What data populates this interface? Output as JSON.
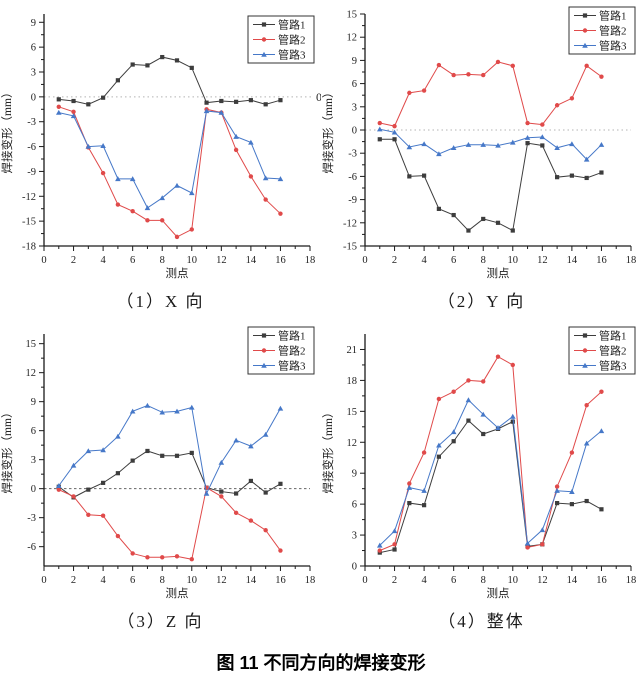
{
  "figure": {
    "caption": "图 11 不同方向的焊接变形"
  },
  "colors": {
    "series1": "#3d3d3d",
    "series2": "#e04a4a",
    "series3": "#4678c8",
    "zero_line_light": "#b3b3b3",
    "zero_line_dark": "#666666",
    "axis": "#1a1a1a",
    "tick_text": "#222222"
  },
  "chart_data": [
    {
      "type": "line",
      "panel_label": "（1）X 向",
      "xlabel": "测点",
      "ylabel": "焊接变形（mm）",
      "xlim": [
        0,
        18
      ],
      "ylim": [
        -18,
        10
      ],
      "xticks": [
        0,
        2,
        4,
        6,
        8,
        10,
        12,
        14,
        16,
        18
      ],
      "yticks": [
        -18,
        -15,
        -12,
        -9,
        -6,
        -3,
        0,
        3,
        6,
        9
      ],
      "x": [
        1,
        2,
        3,
        4,
        5,
        6,
        7,
        8,
        9,
        10,
        11,
        12,
        13,
        14,
        15,
        16
      ],
      "zero_line": true,
      "zero_line_style": "light",
      "zero_right_label": "0",
      "legend_position": "top-right",
      "legend_offset_y": 16,
      "grid": false,
      "series": [
        {
          "name": "管路1",
          "marker": "square",
          "color": "#3d3d3d",
          "values": [
            -0.3,
            -0.5,
            -0.9,
            -0.1,
            2.0,
            3.9,
            3.8,
            4.8,
            4.4,
            3.5,
            -0.7,
            -0.5,
            -0.6,
            -0.4,
            -0.9,
            -0.4
          ]
        },
        {
          "name": "管路2",
          "marker": "circle",
          "color": "#e04a4a",
          "values": [
            -1.2,
            -1.8,
            -6.1,
            -9.2,
            -13.0,
            -13.8,
            -14.9,
            -14.9,
            -16.9,
            -16.0,
            -1.5,
            -1.9,
            -6.4,
            -9.6,
            -12.4,
            -14.1
          ]
        },
        {
          "name": "管路3",
          "marker": "triangle",
          "color": "#4678c8",
          "values": [
            -1.9,
            -2.3,
            -6.0,
            -5.9,
            -9.9,
            -9.9,
            -13.4,
            -12.2,
            -10.7,
            -11.6,
            -1.7,
            -1.9,
            -4.8,
            -5.5,
            -9.8,
            -9.9
          ]
        }
      ]
    },
    {
      "type": "line",
      "panel_label": "（2）Y 向",
      "xlabel": "测点",
      "ylabel": "焊接变形（mm）",
      "xlim": [
        0,
        18
      ],
      "ylim": [
        -15,
        15
      ],
      "xticks": [
        0,
        2,
        4,
        6,
        8,
        10,
        12,
        14,
        16,
        18
      ],
      "yticks": [
        -15,
        -12,
        -9,
        -6,
        -3,
        0,
        3,
        6,
        9,
        12,
        15
      ],
      "x": [
        1,
        2,
        3,
        4,
        5,
        6,
        7,
        8,
        9,
        10,
        11,
        12,
        13,
        14,
        15,
        16
      ],
      "zero_line": true,
      "zero_line_style": "light",
      "zero_right_label": "",
      "legend_position": "top-right",
      "legend_offset_y": 7,
      "grid": false,
      "series": [
        {
          "name": "管路1",
          "marker": "square",
          "color": "#3d3d3d",
          "values": [
            -1.2,
            -1.2,
            -6.0,
            -5.9,
            -10.2,
            -11.0,
            -13.0,
            -11.5,
            -12.0,
            -13.0,
            -1.7,
            -2.0,
            -6.1,
            -5.9,
            -6.2,
            -5.5
          ]
        },
        {
          "name": "管路2",
          "marker": "circle",
          "color": "#e04a4a",
          "values": [
            0.9,
            0.5,
            4.8,
            5.1,
            8.4,
            7.1,
            7.2,
            7.1,
            8.8,
            8.3,
            0.9,
            0.7,
            3.2,
            4.1,
            8.3,
            6.9
          ]
        },
        {
          "name": "管路3",
          "marker": "triangle",
          "color": "#4678c8",
          "values": [
            0.1,
            -0.3,
            -2.2,
            -1.8,
            -3.1,
            -2.3,
            -1.9,
            -1.9,
            -2.0,
            -1.6,
            -1.0,
            -0.9,
            -2.3,
            -1.8,
            -3.8,
            -1.9
          ]
        }
      ]
    },
    {
      "type": "line",
      "panel_label": "（3）Z 向",
      "xlabel": "测点",
      "ylabel": "焊接变形（mm）",
      "xlim": [
        0,
        18
      ],
      "ylim": [
        -8,
        16
      ],
      "xticks": [
        0,
        2,
        4,
        6,
        8,
        10,
        12,
        14,
        16,
        18
      ],
      "yticks": [
        -6,
        -3,
        0,
        3,
        6,
        9,
        12,
        15
      ],
      "x": [
        1,
        2,
        3,
        4,
        5,
        6,
        7,
        8,
        9,
        10,
        11,
        12,
        13,
        14,
        15,
        16
      ],
      "zero_line": true,
      "zero_line_style": "dark",
      "zero_right_label": "",
      "legend_position": "top-right",
      "legend_offset_y": 7,
      "grid": false,
      "series": [
        {
          "name": "管路1",
          "marker": "square",
          "color": "#3d3d3d",
          "values": [
            0.2,
            -0.9,
            -0.1,
            0.6,
            1.6,
            2.9,
            3.9,
            3.4,
            3.4,
            3.7,
            0.1,
            -0.3,
            -0.5,
            0.8,
            -0.4,
            0.5
          ]
        },
        {
          "name": "管路2",
          "marker": "circle",
          "color": "#e04a4a",
          "values": [
            -0.1,
            -0.8,
            -2.7,
            -2.8,
            -4.9,
            -6.7,
            -7.1,
            -7.1,
            -7.0,
            -7.3,
            0.1,
            -0.8,
            -2.5,
            -3.3,
            -4.3,
            -6.4
          ]
        },
        {
          "name": "管路3",
          "marker": "triangle",
          "color": "#4678c8",
          "values": [
            0.3,
            2.4,
            3.9,
            4.0,
            5.4,
            8.0,
            8.6,
            7.9,
            8.0,
            8.4,
            -0.5,
            2.7,
            5.0,
            4.4,
            5.6,
            8.3
          ]
        }
      ]
    },
    {
      "type": "line",
      "panel_label": "（4）整体",
      "xlabel": "测点",
      "ylabel": "焊接变形（mm）",
      "xlim": [
        0,
        18
      ],
      "ylim": [
        0,
        22.5
      ],
      "xticks": [
        0,
        2,
        4,
        6,
        8,
        10,
        12,
        14,
        16,
        18
      ],
      "yticks": [
        0,
        3,
        6,
        9,
        12,
        15,
        18,
        21
      ],
      "x": [
        1,
        2,
        3,
        4,
        5,
        6,
        7,
        8,
        9,
        10,
        11,
        12,
        13,
        14,
        15,
        16
      ],
      "zero_line": false,
      "zero_line_style": "light",
      "zero_right_label": "",
      "legend_position": "top-right",
      "legend_offset_y": 7,
      "grid": false,
      "series": [
        {
          "name": "管路1",
          "marker": "square",
          "color": "#3d3d3d",
          "values": [
            1.3,
            1.6,
            6.1,
            5.9,
            10.6,
            12.1,
            14.1,
            12.8,
            13.3,
            14.0,
            1.9,
            2.1,
            6.1,
            6.0,
            6.3,
            5.5
          ]
        },
        {
          "name": "管路2",
          "marker": "circle",
          "color": "#e04a4a",
          "values": [
            1.5,
            2.1,
            8.0,
            11.0,
            16.2,
            16.9,
            18.0,
            17.9,
            20.3,
            19.5,
            1.8,
            2.1,
            7.7,
            11.0,
            15.6,
            16.9
          ]
        },
        {
          "name": "管路3",
          "marker": "triangle",
          "color": "#4678c8",
          "values": [
            2.0,
            3.4,
            7.6,
            7.3,
            11.7,
            13.0,
            16.1,
            14.7,
            13.4,
            14.5,
            2.2,
            3.5,
            7.3,
            7.2,
            11.9,
            13.1
          ]
        }
      ]
    }
  ]
}
